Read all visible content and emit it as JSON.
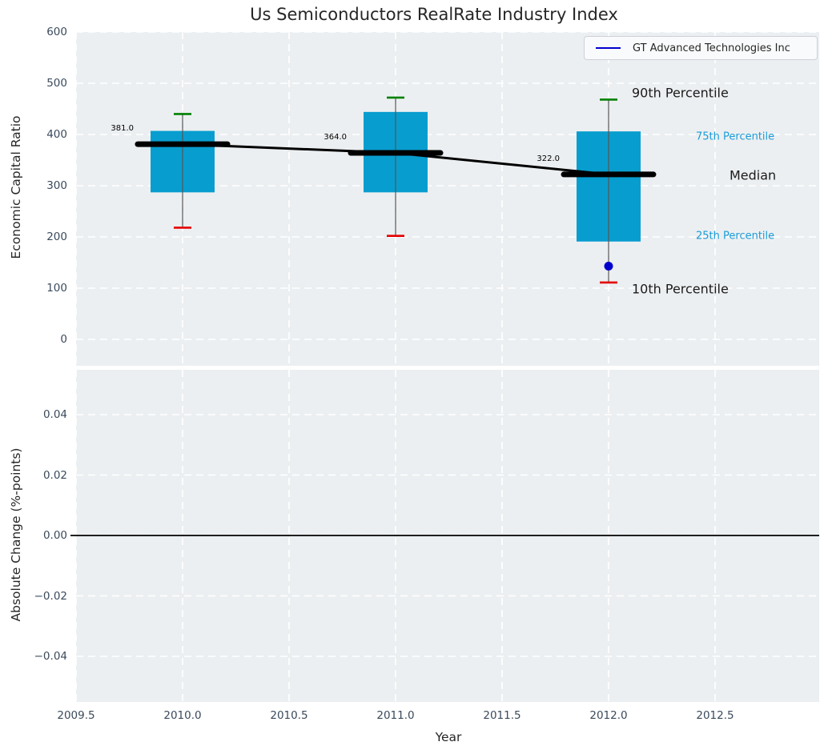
{
  "title": "Us Semiconductors RealRate Industry Index",
  "legend": {
    "label": "GT Advanced Technologies Inc"
  },
  "annotations": {
    "p90": "90th Percentile",
    "p75": "75th Percentile",
    "median": "Median",
    "p25": "25th Percentile",
    "p10": "10th Percentile"
  },
  "colors": {
    "box_fill": "#089dcf",
    "whisker": "#555555",
    "cap_top": "#008002",
    "cap_bottom": "#e50000",
    "median_line": "#000000",
    "company_point": "#0000cd",
    "legend_line": "#0101cd",
    "percentile_label": "#1a9cd8",
    "tick_label": "#3a4a5c",
    "axes_bg": "#eceff1",
    "grid": "#ffffff",
    "zero_line": "#000000"
  },
  "chart_data": [
    {
      "type": "boxplot",
      "panel": "top",
      "title": "Us Semiconductors RealRate Industry Index",
      "ylabel": "Economic Capital Ratio",
      "ylim": [
        -52,
        600
      ],
      "ytick_labels": [
        "600",
        "500",
        "400",
        "300",
        "200",
        "100",
        "0"
      ],
      "ytick_values": [
        600,
        500,
        400,
        300,
        200,
        100,
        0
      ],
      "grid": "white dashed on",
      "legend_position": "upper right",
      "categories": [
        2010,
        2011,
        2012
      ],
      "series": [
        {
          "name": "90th Percentile",
          "values": [
            440,
            472,
            468
          ]
        },
        {
          "name": "75th Percentile",
          "values": [
            407,
            444,
            406
          ]
        },
        {
          "name": "Median",
          "values": [
            381,
            364,
            322
          ]
        },
        {
          "name": "25th Percentile",
          "values": [
            287,
            287,
            191
          ]
        },
        {
          "name": "10th Percentile",
          "values": [
            218,
            202,
            111
          ]
        }
      ],
      "median_labels": [
        "381.0",
        "364.0",
        "322.0"
      ],
      "median_trend_line": {
        "x": [
          2010,
          2011,
          2012
        ],
        "y": [
          381,
          364,
          322
        ]
      },
      "company_point": {
        "name": "GT Advanced Technologies Inc",
        "x": 2012,
        "y": 143
      }
    },
    {
      "type": "line",
      "panel": "bottom",
      "xlabel": "Year",
      "ylabel": "Absolute Change (%-points)",
      "ylim": [
        -0.055,
        0.055
      ],
      "xlim": [
        2009.5,
        2012.99
      ],
      "ytick_labels": [
        "0.04",
        "0.02",
        "0.00",
        "−0.02",
        "−0.04"
      ],
      "ytick_values": [
        0.04,
        0.02,
        0.0,
        -0.02,
        -0.04
      ],
      "xtick_labels": [
        "2009.5",
        "2010.0",
        "2010.5",
        "2011.0",
        "2011.5",
        "2012.0",
        "2012.5"
      ],
      "xtick_values": [
        2009.5,
        2010.0,
        2010.5,
        2011.0,
        2011.5,
        2012.0,
        2012.5
      ],
      "zero_line": 0.0,
      "grid": "white dashed on",
      "series": []
    }
  ]
}
